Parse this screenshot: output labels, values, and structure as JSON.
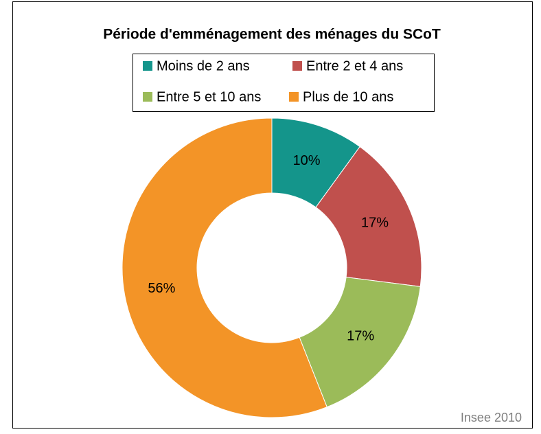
{
  "chart_data": {
    "type": "donut",
    "title": "Période d'emménagement des ménages  du SCoT",
    "categories": [
      "Moins de 2 ans",
      "Entre 2 et 4 ans",
      "Entre 5 et 10 ans",
      "Plus de 10 ans"
    ],
    "values": [
      10,
      17,
      17,
      56
    ],
    "value_labels": [
      "10%",
      "17%",
      "17%",
      "56%"
    ],
    "colors": [
      "#14958b",
      "#c0504d",
      "#9bbb59",
      "#f39427"
    ],
    "legend": "top",
    "source": "Insee 2010"
  }
}
